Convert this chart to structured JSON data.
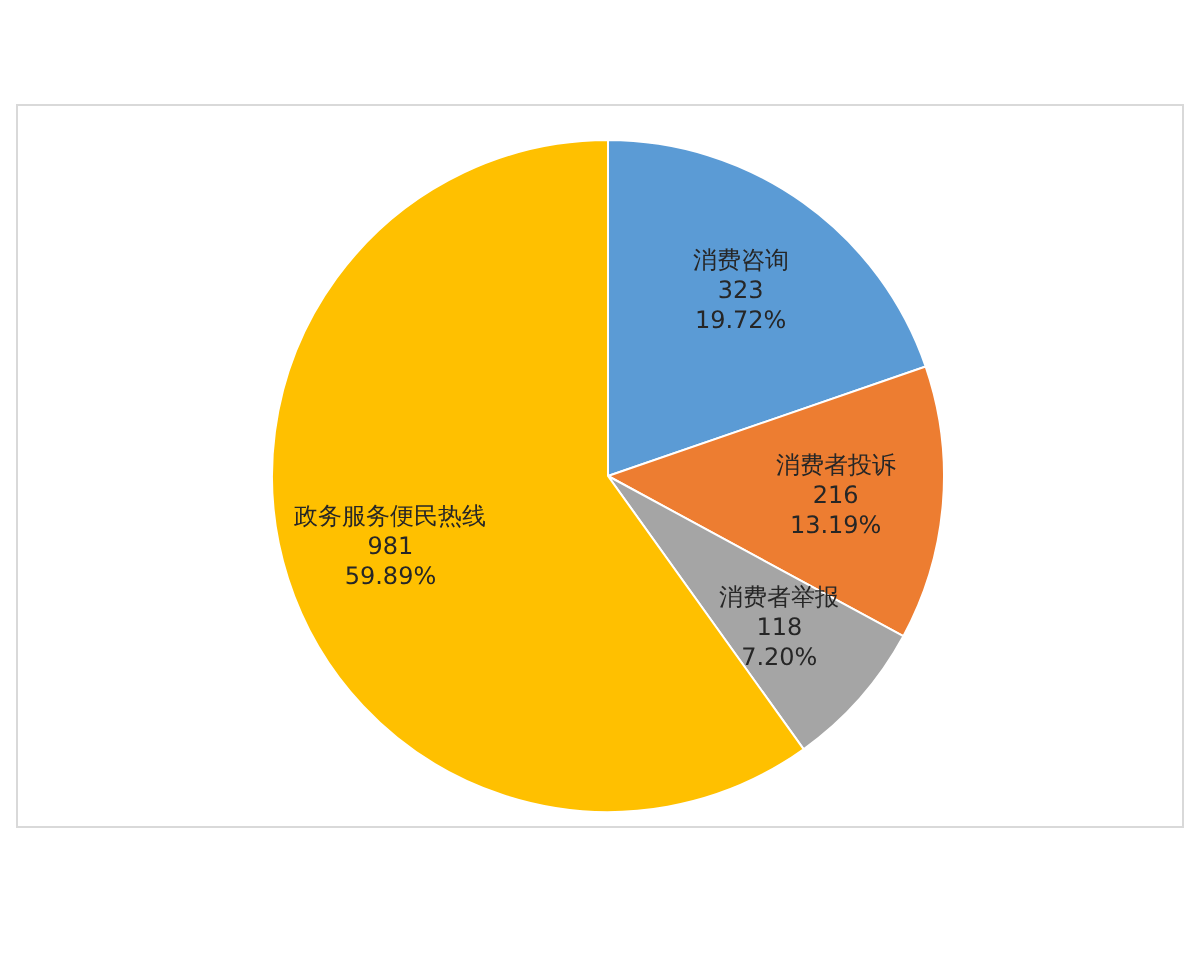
{
  "chart_data": {
    "type": "pie",
    "categories": [
      "消费咨询",
      "消费者投诉",
      "消费者举报",
      "政务服务便民热线"
    ],
    "values": [
      19.72,
      13.19,
      7.2,
      59.89
    ],
    "value_labels": [
      "323\n19.72%",
      "216\n13.19%",
      "118\n7.20%",
      "981\n59.89%"
    ],
    "colors": [
      "#5b9bd5",
      "#ed7d31",
      "#a5a5a5",
      "#ffc000"
    ],
    "legend": false
  }
}
